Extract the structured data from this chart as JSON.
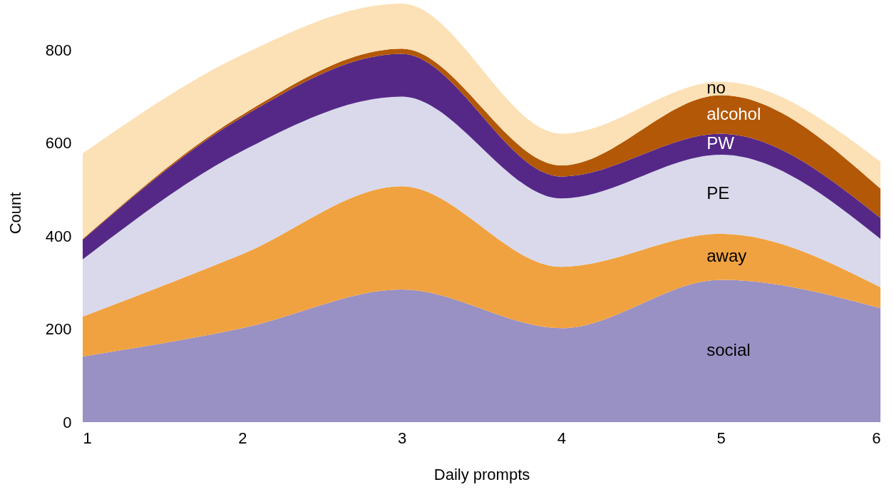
{
  "chart_data": {
    "type": "area",
    "stacked": true,
    "xlabel": "Daily prompts",
    "ylabel": "Count",
    "x": [
      1,
      2,
      3,
      4,
      5,
      6
    ],
    "xlim": [
      1,
      6
    ],
    "xticks": [
      1,
      2,
      3,
      4,
      5,
      6
    ],
    "ylim": [
      0,
      900
    ],
    "yticks": [
      0,
      200,
      400,
      600,
      800
    ],
    "grid": false,
    "legend": false,
    "series": [
      {
        "name": "social",
        "color": "#9990c3",
        "values": [
          141,
          202,
          285,
          202,
          306,
          245
        ]
      },
      {
        "name": "away",
        "color": "#f0a241",
        "values": [
          86,
          159,
          222,
          132,
          99,
          45
        ]
      },
      {
        "name": "PE",
        "color": "#d9d9eb",
        "values": [
          123,
          222,
          193,
          147,
          170,
          104
        ]
      },
      {
        "name": "PW",
        "color": "#552888",
        "values": [
          42,
          73,
          92,
          47,
          45,
          45
        ]
      },
      {
        "name": "alcohol",
        "color": "#b35806",
        "values": [
          2,
          5,
          11,
          24,
          83,
          63
        ]
      },
      {
        "name": "no",
        "color": "#fce0b6",
        "values": [
          184,
          129,
          97,
          68,
          29,
          58
        ]
      }
    ]
  }
}
